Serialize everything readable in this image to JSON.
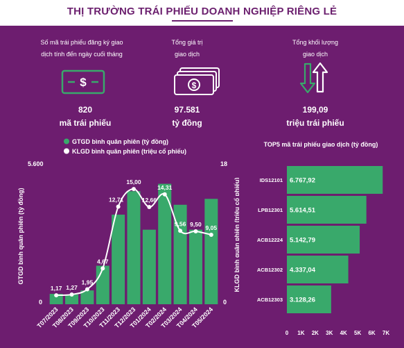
{
  "title": "THỊ TRƯỜNG TRÁI PHIẾU DOANH NGHIỆP RIÊNG LẺ",
  "stats": [
    {
      "label_line1": "Số mã trái phiếu đăng ký giao",
      "label_line2": "dịch tính đến ngày cuối tháng",
      "value_line1": "820",
      "value_line2": "mã trái phiếu",
      "icon": "banknote-icon"
    },
    {
      "label_line1": "Tổng giá trị",
      "label_line2": "giao dịch",
      "value_line1": "97.581",
      "value_line2": "tỷ đồng",
      "icon": "money-stack-icon"
    },
    {
      "label_line1": "Tổng khối lượng",
      "label_line2": "giao dịch",
      "value_line1": "199,09",
      "value_line2": "triệu trái phiếu",
      "icon": "up-down-arrows-icon"
    }
  ],
  "colors": {
    "panel": "#6d1d6f",
    "bar": "#39a96b",
    "line": "#ffffff",
    "title": "#6b1f6e",
    "text": "#ffffff"
  },
  "chart_data": [
    {
      "type": "bar",
      "legend": [
        "GTGD bình quân phiên (tỷ đồng)",
        "KLGD bình quân phiên (triệu cổ phiếu)"
      ],
      "legend_position": "top",
      "categories": [
        "T07/2023",
        "T08/2023",
        "T09/2023",
        "T10/2023",
        "T11/2023",
        "T12/2023",
        "T01/2024",
        "T02/2024",
        "T03/2024",
        "T04/2024",
        "T05/2024"
      ],
      "series": [
        {
          "name": "GTGD bình quân phiên (tỷ đồng)",
          "type": "bar",
          "axis": "left",
          "values": [
            420,
            390,
            560,
            1560,
            3630,
            4580,
            3020,
            4880,
            4030,
            3020,
            4270
          ]
        },
        {
          "name": "KLGD bình quân phiên (triệu cổ phiếu)",
          "type": "line",
          "axis": "right",
          "values": [
            1.17,
            1.27,
            1.95,
            4.67,
            12.71,
            15.0,
            12.66,
            14.31,
            9.56,
            9.5,
            9.05
          ],
          "labels": [
            "1,17",
            "1,27",
            "1,95",
            "4,67",
            "12,71",
            "15,00",
            "12,66",
            "14,31",
            "9,56",
            "9,50",
            "9,05"
          ]
        }
      ],
      "ylabel": "GTGD bình quân phiên (tỷ đồng)",
      "y2label": "KLGD bình quân phiên (triệu cổ phiếu)",
      "ylim": [
        0,
        5600
      ],
      "y2lim": [
        0,
        18
      ],
      "yticks": [
        "0",
        "5.600"
      ],
      "y2ticks": [
        "0",
        "18"
      ],
      "grid": false
    },
    {
      "type": "bar",
      "orientation": "horizontal",
      "title": "TOP5 mã trái phiếu giao dịch (tỷ đồng)",
      "categories": [
        "IDS12101",
        "LPB12301",
        "ACB12224",
        "ACB12302",
        "ACB12303"
      ],
      "values": [
        6767.92,
        5614.51,
        5142.79,
        4337.04,
        3128.26
      ],
      "labels": [
        "6.767,92",
        "5.614,51",
        "5.142,79",
        "4.337,04",
        "3.128,26"
      ],
      "xlim": [
        0,
        7000
      ],
      "xticks": [
        "0",
        "1K",
        "2K",
        "3K",
        "4K",
        "5K",
        "6K",
        "7K"
      ],
      "grid": false
    }
  ]
}
